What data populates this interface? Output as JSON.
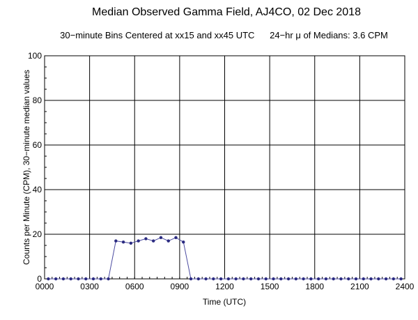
{
  "chart_data": {
    "type": "line",
    "title": "Median Observed Gamma Field, AJ4CO, 02 Dec 2018",
    "subtitle": "30−minute Bins Centered at xx15 and xx45 UTC      24−hr μ of Medians: 3.6 CPM",
    "xlabel": "Time (UTC)",
    "ylabel": "Counts per Minute (CPM), 30−minute median values",
    "xlim": [
      0,
      24
    ],
    "ylim": [
      0,
      100
    ],
    "x_ticks": [
      0,
      3,
      6,
      9,
      12,
      15,
      18,
      21,
      24
    ],
    "x_tick_labels": [
      "0000",
      "0300",
      "0600",
      "0900",
      "1200",
      "1500",
      "1800",
      "2100",
      "2400"
    ],
    "y_ticks": [
      0,
      20,
      40,
      60,
      80,
      100
    ],
    "y_tick_labels": [
      "0",
      "20",
      "40",
      "60",
      "80",
      "100"
    ],
    "grid": true,
    "series": [
      {
        "color": "#4b4ba0",
        "marker_color": "#2a2a80",
        "x": [
          0.25,
          0.75,
          1.25,
          1.75,
          2.25,
          2.75,
          3.25,
          3.75,
          4.25,
          4.75,
          5.25,
          5.75,
          6.25,
          6.75,
          7.25,
          7.75,
          8.25,
          8.75,
          9.25,
          9.75,
          10.25,
          10.75,
          11.25,
          11.75,
          12.25,
          12.75,
          13.25,
          13.75,
          14.25,
          14.75,
          15.25,
          15.75,
          16.25,
          16.75,
          17.25,
          17.75,
          18.25,
          18.75,
          19.25,
          19.75,
          20.25,
          20.75,
          21.25,
          21.75,
          22.25,
          22.75,
          23.25,
          23.75
        ],
        "y": [
          0,
          0,
          0,
          0,
          0,
          0,
          0,
          0,
          0,
          17,
          16.5,
          16,
          17,
          18,
          17,
          18.5,
          17,
          18.5,
          16.5,
          0,
          0,
          0,
          0,
          0,
          0,
          0,
          0,
          0,
          0,
          0,
          0,
          0,
          0,
          0,
          0,
          0,
          0,
          0,
          0,
          0,
          0,
          0,
          0,
          0,
          0,
          0,
          0,
          0
        ]
      }
    ]
  }
}
